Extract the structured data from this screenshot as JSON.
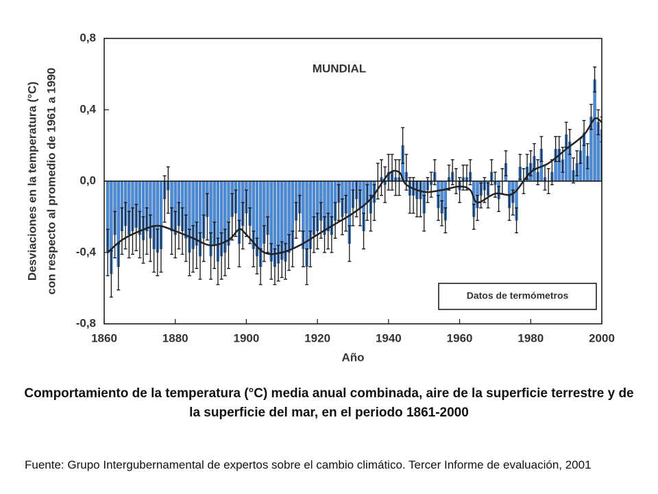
{
  "chart_data": {
    "type": "bar",
    "title": "MUNDIAL",
    "ylabel": [
      "Desviaciones en la temperatura (°C)",
      "con respecto al promedio de 1961 a 1990"
    ],
    "xlabel": "Año",
    "xlim": [
      1860,
      2000
    ],
    "ylim": [
      -0.8,
      0.8
    ],
    "xticks": [
      1860,
      1880,
      1900,
      1920,
      1940,
      1960,
      1980,
      2000
    ],
    "yticks": [
      {
        "value": 0.8,
        "label": "0,8"
      },
      {
        "value": 0.4,
        "label": "0,4"
      },
      {
        "value": 0,
        "label": "0,0"
      },
      {
        "value": -0.4,
        "label": "-0,4"
      },
      {
        "value": -0.8,
        "label": "-0,8"
      }
    ],
    "legend": "lower right",
    "x": [
      1861,
      1862,
      1863,
      1864,
      1865,
      1866,
      1867,
      1868,
      1869,
      1870,
      1871,
      1872,
      1873,
      1874,
      1875,
      1876,
      1877,
      1878,
      1879,
      1880,
      1881,
      1882,
      1883,
      1884,
      1885,
      1886,
      1887,
      1888,
      1889,
      1890,
      1891,
      1892,
      1893,
      1894,
      1895,
      1896,
      1897,
      1898,
      1899,
      1900,
      1901,
      1902,
      1903,
      1904,
      1905,
      1906,
      1907,
      1908,
      1909,
      1910,
      1911,
      1912,
      1913,
      1914,
      1915,
      1916,
      1917,
      1918,
      1919,
      1920,
      1921,
      1922,
      1923,
      1924,
      1925,
      1926,
      1927,
      1928,
      1929,
      1930,
      1931,
      1932,
      1933,
      1934,
      1935,
      1936,
      1937,
      1938,
      1939,
      1940,
      1941,
      1942,
      1943,
      1944,
      1945,
      1946,
      1947,
      1948,
      1949,
      1950,
      1951,
      1952,
      1953,
      1954,
      1955,
      1956,
      1957,
      1958,
      1959,
      1960,
      1961,
      1962,
      1963,
      1964,
      1965,
      1966,
      1967,
      1968,
      1969,
      1970,
      1971,
      1972,
      1973,
      1974,
      1975,
      1976,
      1977,
      1978,
      1979,
      1980,
      1981,
      1982,
      1983,
      1984,
      1985,
      1986,
      1987,
      1988,
      1989,
      1990,
      1991,
      1992,
      1993,
      1994,
      1995,
      1996,
      1997,
      1998,
      1999,
      2000
    ],
    "series": [
      {
        "name": "Datos de termómetros",
        "color": "#4a8ad6",
        "values": [
          -0.4,
          -0.52,
          -0.3,
          -0.48,
          -0.28,
          -0.25,
          -0.3,
          -0.28,
          -0.26,
          -0.3,
          -0.33,
          -0.28,
          -0.32,
          -0.38,
          -0.4,
          -0.38,
          -0.1,
          -0.05,
          -0.28,
          -0.3,
          -0.25,
          -0.28,
          -0.32,
          -0.4,
          -0.38,
          -0.36,
          -0.42,
          -0.32,
          -0.2,
          -0.42,
          -0.36,
          -0.45,
          -0.42,
          -0.4,
          -0.36,
          -0.2,
          -0.18,
          -0.35,
          -0.25,
          -0.18,
          -0.25,
          -0.38,
          -0.42,
          -0.48,
          -0.35,
          -0.3,
          -0.45,
          -0.48,
          -0.46,
          -0.44,
          -0.45,
          -0.4,
          -0.38,
          -0.22,
          -0.18,
          -0.38,
          -0.48,
          -0.38,
          -0.3,
          -0.28,
          -0.22,
          -0.3,
          -0.28,
          -0.3,
          -0.22,
          -0.12,
          -0.2,
          -0.18,
          -0.35,
          -0.15,
          -0.1,
          -0.15,
          -0.28,
          -0.12,
          -0.18,
          -0.12,
          0.0,
          0.02,
          -0.02,
          0.05,
          0.05,
          0.02,
          0.02,
          0.2,
          0.05,
          -0.08,
          -0.08,
          -0.1,
          -0.1,
          -0.18,
          -0.05,
          -0.02,
          0.05,
          -0.15,
          -0.18,
          -0.22,
          0.02,
          0.05,
          0.0,
          -0.05,
          0.02,
          0.02,
          0.05,
          -0.2,
          -0.15,
          -0.08,
          -0.05,
          -0.08,
          0.05,
          -0.02,
          -0.1,
          0.0,
          0.1,
          -0.15,
          -0.12,
          -0.22,
          0.08,
          0.0,
          0.08,
          0.1,
          0.14,
          0.05,
          0.18,
          0.02,
          0.0,
          0.05,
          0.18,
          0.18,
          0.12,
          0.26,
          0.22,
          0.06,
          0.1,
          0.17,
          0.27,
          0.14,
          0.36,
          0.57,
          0.33,
          0.29
        ],
        "errors": [
          0.13,
          0.13,
          0.13,
          0.13,
          0.13,
          0.13,
          0.13,
          0.13,
          0.13,
          0.13,
          0.13,
          0.13,
          0.13,
          0.13,
          0.13,
          0.13,
          0.13,
          0.13,
          0.13,
          0.13,
          0.13,
          0.13,
          0.13,
          0.13,
          0.13,
          0.13,
          0.13,
          0.13,
          0.13,
          0.13,
          0.13,
          0.13,
          0.13,
          0.13,
          0.13,
          0.13,
          0.13,
          0.13,
          0.13,
          0.13,
          0.1,
          0.1,
          0.1,
          0.1,
          0.1,
          0.1,
          0.1,
          0.1,
          0.1,
          0.1,
          0.1,
          0.1,
          0.1,
          0.1,
          0.1,
          0.1,
          0.1,
          0.1,
          0.1,
          0.1,
          0.1,
          0.1,
          0.1,
          0.1,
          0.1,
          0.1,
          0.1,
          0.1,
          0.1,
          0.1,
          0.1,
          0.1,
          0.1,
          0.1,
          0.1,
          0.1,
          0.1,
          0.1,
          0.1,
          0.1,
          0.1,
          0.1,
          0.1,
          0.1,
          0.1,
          0.1,
          0.1,
          0.1,
          0.1,
          0.1,
          0.07,
          0.07,
          0.07,
          0.07,
          0.07,
          0.07,
          0.07,
          0.07,
          0.07,
          0.07,
          0.07,
          0.07,
          0.07,
          0.07,
          0.07,
          0.07,
          0.07,
          0.07,
          0.07,
          0.07,
          0.07,
          0.07,
          0.07,
          0.07,
          0.07,
          0.07,
          0.07,
          0.07,
          0.07,
          0.07,
          0.07,
          0.07,
          0.07,
          0.07,
          0.07,
          0.07,
          0.07,
          0.07,
          0.07,
          0.07,
          0.07,
          0.07,
          0.07,
          0.07,
          0.07,
          0.07,
          0.07,
          0.07,
          0.07,
          0.07
        ]
      }
    ],
    "smooth": {
      "color": "#222222",
      "x": [
        1861,
        1865,
        1870,
        1875,
        1880,
        1885,
        1890,
        1895,
        1898,
        1900,
        1905,
        1910,
        1915,
        1920,
        1925,
        1930,
        1935,
        1940,
        1943,
        1945,
        1950,
        1955,
        1960,
        1963,
        1965,
        1970,
        1975,
        1980,
        1985,
        1990,
        1995,
        1998,
        2000
      ],
      "values": [
        -0.4,
        -0.33,
        -0.28,
        -0.25,
        -0.28,
        -0.32,
        -0.36,
        -0.33,
        -0.27,
        -0.3,
        -0.4,
        -0.4,
        -0.36,
        -0.3,
        -0.24,
        -0.18,
        -0.1,
        0.04,
        0.05,
        -0.02,
        -0.06,
        -0.05,
        -0.03,
        -0.05,
        -0.12,
        -0.07,
        -0.07,
        0.05,
        0.1,
        0.18,
        0.26,
        0.35,
        0.33
      ]
    }
  },
  "caption": "Comportamiento de la temperatura (°C) media anual combinada, aire de la superficie terrestre y de la superficie del mar, en el periodo 1861-2000",
  "source": "Fuente: Grupo Intergubernamental de expertos sobre el cambio climático. Tercer Informe de evaluación, 2001"
}
